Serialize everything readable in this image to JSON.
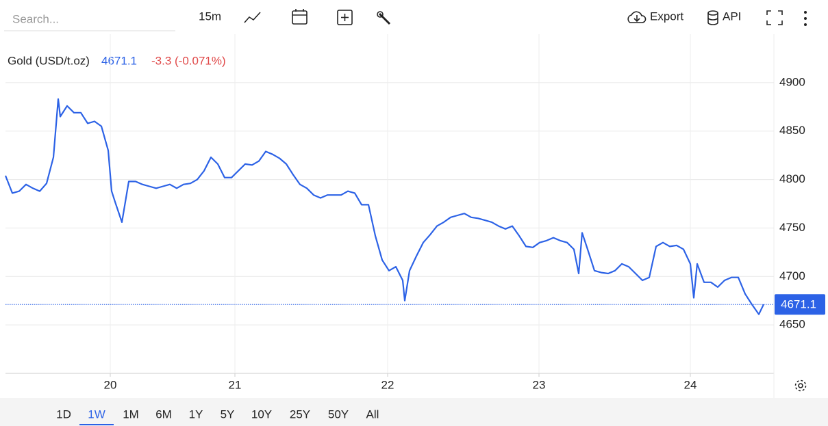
{
  "toolbar": {
    "search_placeholder": "Search...",
    "interval": "15m",
    "export": "Export",
    "api": "API"
  },
  "chart_data": {
    "type": "line",
    "title": "Gold (USD/t.oz)",
    "last_price": 4671.1,
    "change": "-3.3 (-0.071%)",
    "color": "#2c62e6",
    "change_color": "#e04848",
    "grid": true,
    "price_line": true,
    "x": [
      0,
      1,
      2,
      3,
      4,
      5,
      6,
      7,
      7.7,
      8,
      9,
      10,
      11,
      12,
      13,
      14,
      15,
      15.5,
      16,
      17,
      18,
      19,
      20,
      21,
      22,
      23,
      24,
      25,
      26,
      27,
      28,
      29,
      30,
      31,
      32,
      33,
      34,
      35,
      36,
      37,
      38,
      39,
      40,
      41,
      42,
      43,
      44,
      45,
      46,
      47,
      48,
      49,
      50,
      51,
      52,
      53,
      54,
      55,
      56,
      57,
      58,
      58.3,
      59,
      60,
      61,
      62,
      63,
      64,
      65,
      66,
      67,
      68,
      69,
      70,
      71,
      72,
      73,
      74,
      75,
      76,
      77,
      78,
      79,
      80,
      81,
      82,
      83,
      83.7,
      84.2,
      85,
      86,
      87,
      88,
      89,
      90,
      91,
      92,
      93,
      94,
      95,
      96,
      97,
      98,
      99,
      100,
      100.5,
      101,
      102,
      103,
      104,
      105,
      106,
      107,
      108,
      109,
      110,
      110.7
    ],
    "values": [
      4804,
      4786,
      4788,
      4795,
      4791,
      4788,
      4796,
      4823,
      4883,
      4865,
      4876,
      4869,
      4869,
      4858,
      4860,
      4855,
      4830,
      4788,
      4777,
      4756,
      4798,
      4798,
      4795,
      4793,
      4791,
      4793,
      4795,
      4791,
      4795,
      4796,
      4800,
      4809,
      4823,
      4816,
      4802,
      4802,
      4809,
      4816,
      4815,
      4819,
      4829,
      4826,
      4822,
      4816,
      4805,
      4795,
      4791,
      4784,
      4781,
      4784,
      4784,
      4784,
      4788,
      4786,
      4774,
      4774,
      4742,
      4717,
      4706,
      4710,
      4696,
      4675,
      4706,
      4721,
      4735,
      4743,
      4752,
      4756,
      4761,
      4763,
      4765,
      4761,
      4760,
      4758,
      4756,
      4752,
      4749,
      4752,
      4742,
      4731,
      4730,
      4735,
      4737,
      4740,
      4737,
      4735,
      4728,
      4703,
      4745,
      4728,
      4706,
      4704,
      4703,
      4706,
      4713,
      4710,
      4703,
      4696,
      4699,
      4731,
      4735,
      4731,
      4732,
      4728,
      4713,
      4678,
      4713,
      4694,
      4694,
      4689,
      4696,
      4699,
      4699,
      4682,
      4671,
      4661,
      4671.1
    ],
    "xlim": [
      0,
      112.2
    ],
    "xticks": [
      {
        "value": 15.3,
        "label": "20"
      },
      {
        "value": 33.5,
        "label": "21"
      },
      {
        "value": 55.8,
        "label": "22"
      },
      {
        "value": 77.9,
        "label": "23"
      },
      {
        "value": 100,
        "label": "24"
      }
    ],
    "ylim": [
      4600,
      4950
    ],
    "yticks": [
      4650,
      4700,
      4750,
      4800,
      4850,
      4900
    ]
  },
  "ranges": {
    "options": [
      "1D",
      "1W",
      "1M",
      "6M",
      "1Y",
      "5Y",
      "10Y",
      "25Y",
      "50Y",
      "All"
    ],
    "active_index": 1
  }
}
